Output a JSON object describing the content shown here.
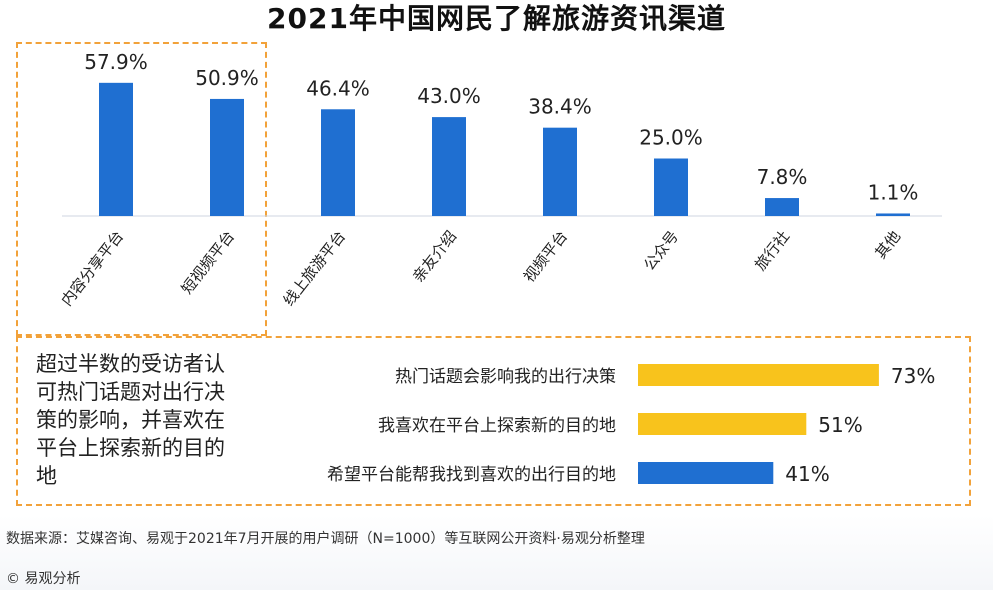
{
  "title": "2021年中国网民了解旅游资讯渠道",
  "chart_data": [
    {
      "type": "bar",
      "categories": [
        "内容分享平台",
        "短视频平台",
        "线上旅游平台",
        "亲友介绍",
        "视频平台",
        "公众号",
        "旅行社",
        "其他"
      ],
      "values": [
        57.9,
        50.9,
        46.4,
        43.0,
        38.4,
        25.0,
        7.8,
        1.1
      ],
      "value_labels": [
        "57.9%",
        "50.9%",
        "46.4%",
        "43.0%",
        "38.4%",
        "25.0%",
        "7.8%",
        "1.1%"
      ],
      "ylim": [
        0,
        60
      ]
    },
    {
      "type": "bar",
      "orientation": "horizontal",
      "categories": [
        "热门话题会影响我的出行决策",
        "我喜欢在平台上探索新的目的地",
        "希望平台能帮我找到喜欢的出行目的地"
      ],
      "values": [
        73,
        51,
        41
      ],
      "value_labels": [
        "73%",
        "51%",
        "41%"
      ],
      "colors": [
        "#f8c31c",
        "#f8c31c",
        "#1f6fd1"
      ],
      "xlim": [
        0,
        100
      ]
    }
  ],
  "summary": "超过半数的受访者认可热门话题对出行决策的影响，并喜欢在平台上探索新的目的地",
  "source": "数据来源：艾媒咨询、易观于2021年7月开展的用户调研（N=1000）等互联网公开资料·易观分析整理",
  "copyright": "© 易观分析",
  "colors": {
    "bar": "#1f6fd1",
    "accent": "#f8c31c",
    "dash": "#f2a23a"
  }
}
